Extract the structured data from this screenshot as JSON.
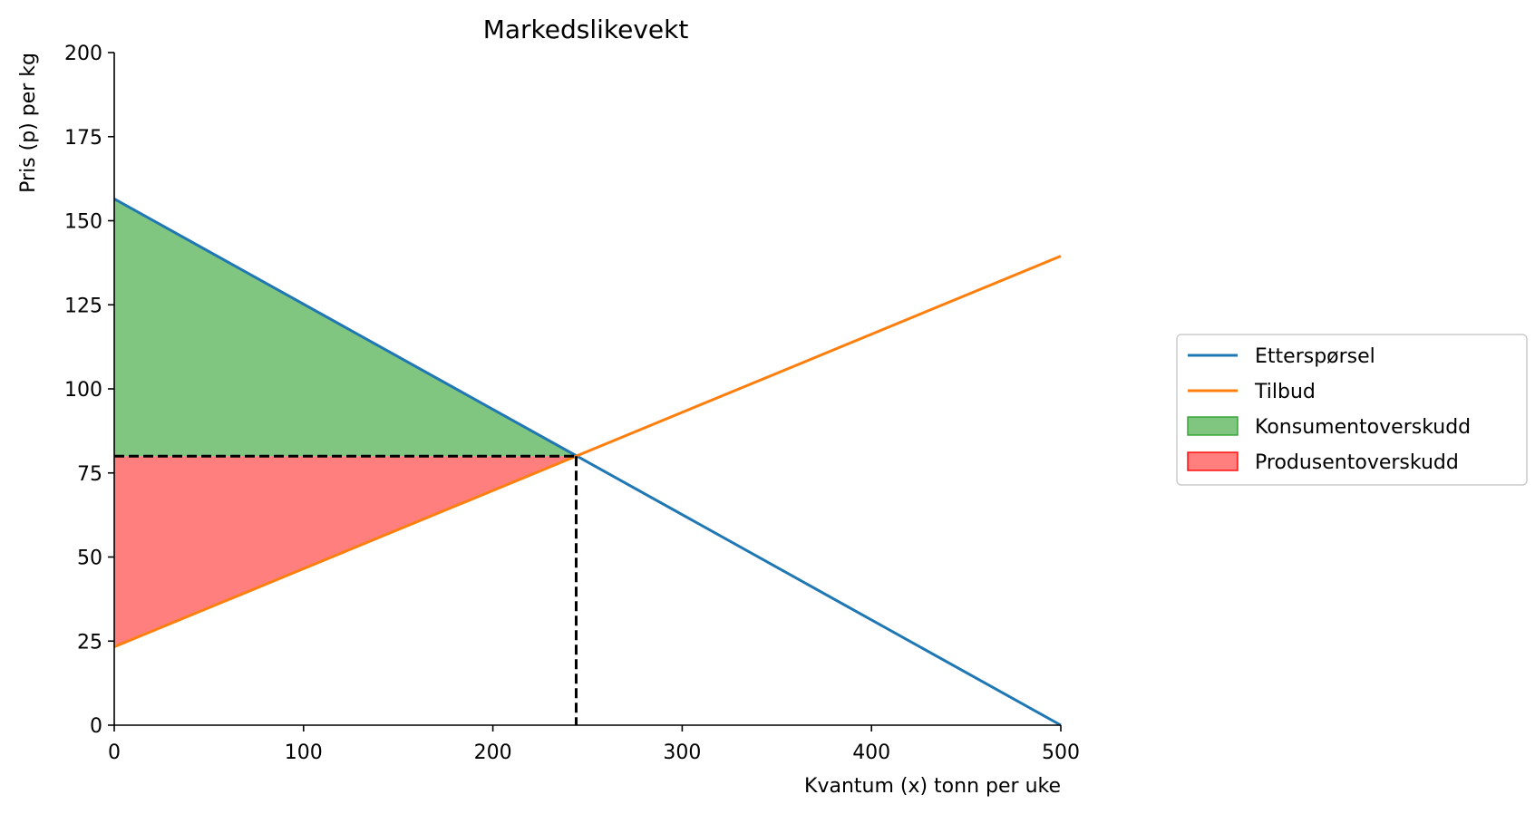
{
  "chart_data": {
    "type": "line",
    "title": "Markedslikevekt",
    "xlabel": "Kvantum (x) tonn per uke",
    "ylabel": "Pris (p) per kg",
    "xlim": [
      0,
      500
    ],
    "ylim": [
      0,
      200
    ],
    "xticks": [
      0,
      100,
      200,
      300,
      400,
      500
    ],
    "yticks": [
      0,
      25,
      50,
      75,
      100,
      125,
      150,
      175,
      200
    ],
    "grid": false,
    "legend_position": "right",
    "series": [
      {
        "name": "Etterspørsel",
        "color": "#1f77b4",
        "x": [
          0,
          500
        ],
        "y": [
          156.5,
          0
        ]
      },
      {
        "name": "Tilbud",
        "color": "#ff7f0e",
        "x": [
          0,
          500
        ],
        "y": [
          23.3,
          139.5
        ]
      }
    ],
    "areas": [
      {
        "name": "Konsumentoverskudd",
        "color": "#2ca02c",
        "opacity": 0.6,
        "x": [
          0,
          244,
          0
        ],
        "y": [
          156.5,
          80,
          80
        ]
      },
      {
        "name": "Produsentoverskudd",
        "color": "#ff0000",
        "opacity": 0.5,
        "x": [
          0,
          244,
          0
        ],
        "y": [
          23.3,
          80,
          80
        ]
      }
    ],
    "equilibrium": {
      "x": 244,
      "y": 80,
      "line_style": "dashed",
      "color": "#000000"
    }
  }
}
